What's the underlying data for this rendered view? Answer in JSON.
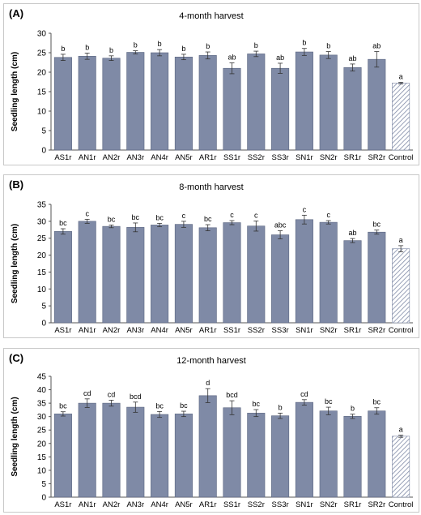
{
  "chart_data": [
    {
      "type": "bar",
      "panel_label": "(A)",
      "title": "4-month harvest",
      "ylabel": "Seedling length (cm)",
      "xlabel": "",
      "ylim": [
        0,
        30
      ],
      "yticks": [
        0,
        5,
        10,
        15,
        20,
        25,
        30
      ],
      "categories": [
        "AS1r",
        "AN1r",
        "AN2r",
        "AN3r",
        "AN4r",
        "AN5r",
        "AR1r",
        "SS1r",
        "SS2r",
        "SS3r",
        "SN1r",
        "SN2r",
        "SR1r",
        "SR2r",
        "Control"
      ],
      "values": [
        23.8,
        24.1,
        23.6,
        25.1,
        25.0,
        23.9,
        24.3,
        21.0,
        24.7,
        21.0,
        25.2,
        24.4,
        21.2,
        23.3,
        17.2
      ],
      "errors": [
        0.8,
        0.8,
        0.6,
        0.4,
        0.8,
        0.7,
        0.9,
        1.4,
        0.7,
        1.3,
        0.9,
        0.9,
        0.9,
        2.0,
        0.2
      ],
      "letters": [
        "b",
        "b",
        "b",
        "b",
        "b",
        "b",
        "b",
        "ab",
        "b",
        "ab",
        "b",
        "b",
        "ab",
        "ab",
        "a"
      ]
    },
    {
      "type": "bar",
      "panel_label": "(B)",
      "title": "8-month harvest",
      "ylabel": "Seedling length (cm)",
      "xlabel": "",
      "ylim": [
        0,
        35
      ],
      "yticks": [
        0,
        5,
        10,
        15,
        20,
        25,
        30,
        35
      ],
      "categories": [
        "AS1r",
        "AN1r",
        "AN2r",
        "AN3r",
        "AN4r",
        "AN5r",
        "AR1r",
        "SS1r",
        "SS2r",
        "SS3r",
        "SN1r",
        "SN2r",
        "SR1r",
        "SR2r",
        "Control"
      ],
      "values": [
        27.0,
        30.0,
        28.5,
        28.2,
        28.9,
        29.1,
        28.1,
        29.6,
        28.6,
        26.0,
        30.5,
        29.7,
        24.3,
        26.8,
        21.9
      ],
      "errors": [
        0.8,
        0.6,
        0.4,
        1.3,
        0.5,
        0.9,
        0.9,
        0.6,
        1.5,
        1.2,
        1.3,
        0.5,
        0.6,
        0.6,
        0.9
      ],
      "letters": [
        "bc",
        "c",
        "bc",
        "bc",
        "bc",
        "c",
        "bc",
        "c",
        "c",
        "abc",
        "c",
        "c",
        "ab",
        "bc",
        "a"
      ]
    },
    {
      "type": "bar",
      "panel_label": "(C)",
      "title": "12-month harvest",
      "ylabel": "Seedling length (cm)",
      "xlabel": "",
      "ylim": [
        0,
        45
      ],
      "yticks": [
        0,
        5,
        10,
        15,
        20,
        25,
        30,
        35,
        40,
        45
      ],
      "categories": [
        "AS1r",
        "AN1r",
        "AN2r",
        "AN3r",
        "AN4r",
        "AN5r",
        "AR1r",
        "SS1r",
        "SS2r",
        "SS3r",
        "SN1r",
        "SN2r",
        "SR1r",
        "SR2r",
        "Control"
      ],
      "values": [
        31.0,
        35.0,
        35.0,
        33.5,
        30.8,
        31.0,
        37.8,
        33.3,
        31.3,
        30.3,
        35.3,
        32.1,
        30.1,
        32.1,
        22.7
      ],
      "errors": [
        0.8,
        1.6,
        1.1,
        1.9,
        1.1,
        1.0,
        2.6,
        2.6,
        1.3,
        1.0,
        1.0,
        1.4,
        0.8,
        1.2,
        0.4
      ],
      "letters": [
        "bc",
        "cd",
        "cd",
        "bcd",
        "bc",
        "bc",
        "d",
        "bcd",
        "bc",
        "b",
        "cd",
        "bc",
        "b",
        "bc",
        "a"
      ]
    }
  ],
  "colors": {
    "bar_fill": "#7f8aa6",
    "bar_stroke": "#5a6580",
    "control_hatch": "#7f8aa6",
    "axis": "#555555"
  }
}
